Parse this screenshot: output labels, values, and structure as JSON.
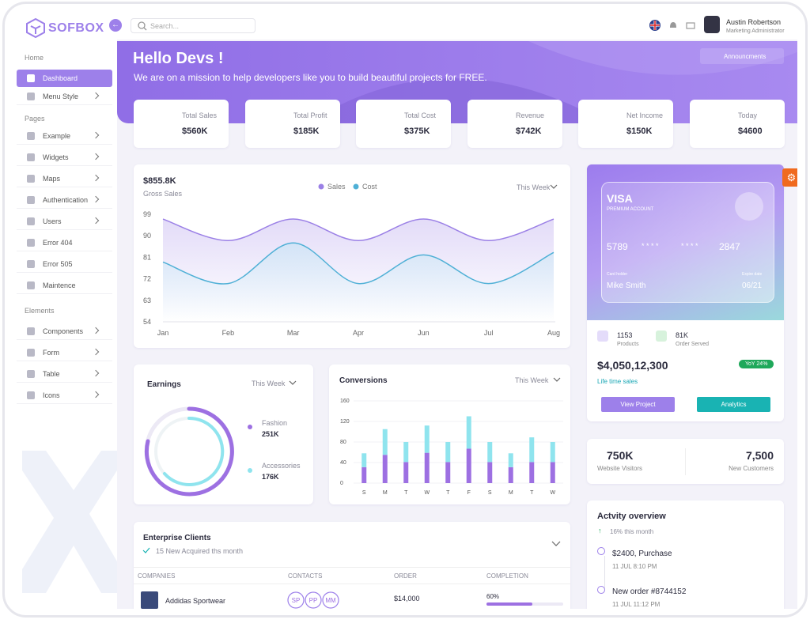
{
  "header": {
    "logo": "SOFBOX",
    "search_placeholder": "Search...",
    "user_name": "Austin Robertson",
    "user_role": "Marketing Administrator"
  },
  "sidebar": {
    "sections": [
      {
        "title": "Home",
        "items": [
          "Dashboard",
          "Menu Style"
        ]
      },
      {
        "title": "Pages",
        "items": [
          "Example",
          "Widgets",
          "Maps",
          "Authentication",
          "Users",
          "Error 404",
          "Error 505",
          "Maintence"
        ]
      },
      {
        "title": "Elements",
        "items": [
          "Components",
          "Form",
          "Table",
          "Icons"
        ]
      }
    ]
  },
  "banner": {
    "title": "Hello Devs !",
    "subtitle": "We are on a mission to help developers like you to build beautiful projects for FREE.",
    "button": "Announcments"
  },
  "stats": [
    {
      "label": "Total Sales",
      "value": "$560K"
    },
    {
      "label": "Total Profit",
      "value": "$185K"
    },
    {
      "label": "Total Cost",
      "value": "$375K"
    },
    {
      "label": "Revenue",
      "value": "$742K"
    },
    {
      "label": "Net Income",
      "value": "$150K"
    },
    {
      "label": "Today",
      "value": "$4600"
    }
  ],
  "gross_sales": {
    "total": "$855.8K",
    "label": "Gross Sales",
    "period": "This Week",
    "chart": {
      "type": "line",
      "categories": [
        "Jan",
        "Feb",
        "Mar",
        "Apr",
        "Jun",
        "Jul",
        "Aug"
      ],
      "series": [
        {
          "name": "Sales",
          "color": "#9b80e6",
          "values": [
            97,
            88,
            97,
            88,
            97,
            88,
            97
          ]
        },
        {
          "name": "Cost",
          "color": "#4fb0d6",
          "values": [
            79,
            70,
            87,
            70,
            82,
            70,
            83
          ]
        }
      ],
      "ylim": [
        54,
        99
      ],
      "yticks": [
        54,
        63,
        72,
        81,
        90,
        99
      ]
    }
  },
  "earnings": {
    "title": "Earnings",
    "period": "This Week",
    "legend": [
      {
        "name": "Fashion",
        "value": "251K"
      },
      {
        "name": "Accessories",
        "value": "176K"
      }
    ]
  },
  "conversions": {
    "title": "Conversions",
    "period": "This Week",
    "chart": {
      "type": "bar",
      "stacked": true,
      "grid": true,
      "categories": [
        "S",
        "M",
        "T",
        "W",
        "T",
        "F",
        "S",
        "M",
        "T",
        "W"
      ],
      "series": [
        {
          "color": "#9d70e2",
          "values": [
            31,
            55,
            41,
            59,
            41,
            67,
            41,
            31,
            41,
            41
          ]
        },
        {
          "color": "#8fe4ee",
          "values": [
            27,
            50,
            39,
            53,
            39,
            63,
            39,
            27,
            48,
            39
          ]
        }
      ],
      "ylim": [
        0,
        160
      ],
      "yticks": [
        0,
        40,
        80,
        120,
        160
      ]
    }
  },
  "visa": {
    "brand": "VISA",
    "tier": "PREMIUM ACCOUNT",
    "number": [
      "5789",
      "* * * *",
      "* * * *",
      "2847"
    ],
    "holder_label": "Card holder",
    "holder": "Mike Smith",
    "expiry_label": "Expire date",
    "expiry": "06/21"
  },
  "summary": {
    "products": "1153",
    "products_label": "Products",
    "orders": "81K",
    "orders_label": "Order Served",
    "amount": "$4,050,12,300",
    "badge": "YoY 24%",
    "amount_label": "Life time sales",
    "buttons": [
      "View Project",
      "Analytics"
    ]
  },
  "visitors": [
    {
      "value": "750K",
      "label": "Website Visitors"
    },
    {
      "value": "7,500",
      "label": "New Customers"
    }
  ],
  "activity": {
    "title": "Actvity overview",
    "change": "16% this month",
    "items": [
      {
        "text": "$2400, Purchase",
        "time": "11 JUL 8:10 PM"
      },
      {
        "text": "New order #8744152",
        "time": "11 JUL 11:12 PM"
      }
    ]
  },
  "clients": {
    "title": "Enterprise Clients",
    "subtitle": "15 New Acquired ths month",
    "table": {
      "columns": [
        "COMPANIES",
        "CONTACTS",
        "ORDER",
        "COMPLETION"
      ],
      "rows": [
        {
          "company": "Addidas Sportwear",
          "contacts": [
            "SP",
            "PP",
            "MM"
          ],
          "order": "$14,000",
          "completion": {
            "value": 60,
            "label": "60%"
          }
        }
      ]
    }
  }
}
